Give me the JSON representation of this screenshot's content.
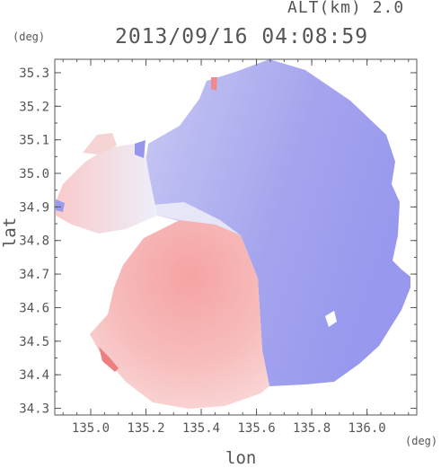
{
  "header": {
    "altitude": "ALT(km) 2.0",
    "timestamp": "2013/09/16 04:08:59"
  },
  "chart_data": {
    "type": "heatmap",
    "title": "2013/09/16 04:08:59",
    "xlabel": "lon",
    "ylabel": "lat",
    "x_unit": "(deg)",
    "y_unit": "(deg)",
    "xlim": [
      134.87,
      136.18
    ],
    "ylim": [
      34.28,
      35.34
    ],
    "x_ticks": [
      "135.0",
      "135.2",
      "135.4",
      "135.6",
      "135.8",
      "136.0"
    ],
    "y_ticks": [
      "34.3",
      "34.4",
      "34.5",
      "34.6",
      "34.7",
      "34.8",
      "34.9",
      "35.0",
      "35.1",
      "35.2",
      "35.3"
    ],
    "grid": false,
    "colors": {
      "positive": "#f08a8a",
      "negative": "#8c8cf0",
      "zero": "#ffffff"
    }
  }
}
